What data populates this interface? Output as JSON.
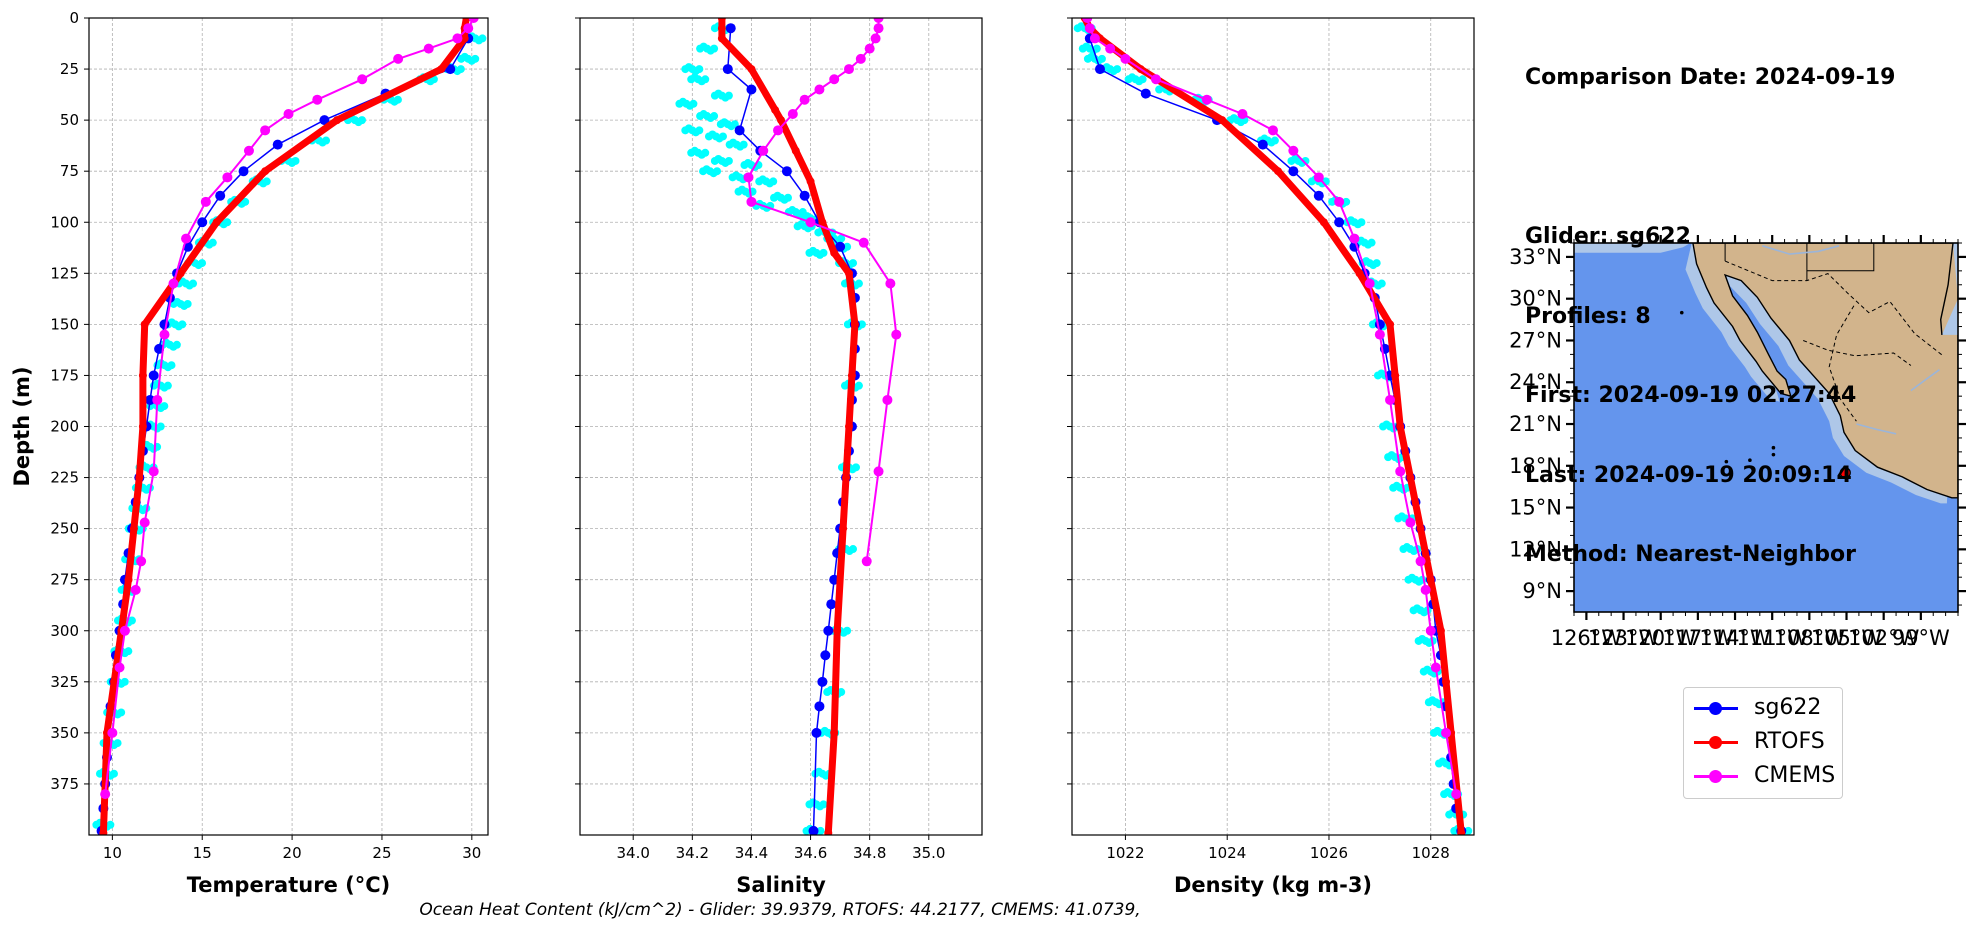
{
  "chart_data": [
    {
      "type": "line",
      "xlabel": "Temperature (°C)",
      "ylabel": "Depth (m)",
      "xlim": [
        8.7,
        30.9
      ],
      "ylim": [
        400,
        0
      ],
      "xticks": [
        10,
        15,
        20,
        25,
        30
      ],
      "yticks": [
        0,
        25,
        50,
        75,
        100,
        125,
        150,
        175,
        200,
        225,
        250,
        275,
        300,
        325,
        350,
        375
      ],
      "grid": true,
      "glider_scatter": {
        "name": "sg622 profiles",
        "color": "#00FFFF",
        "x": [
          30.2,
          29.8,
          29.0,
          27.5,
          25.5,
          23.5,
          21.5,
          19.8,
          18.2,
          17.0,
          16.0,
          15.2,
          14.6,
          14.1,
          13.8,
          13.5,
          13.2,
          12.9,
          12.7,
          12.5,
          12.3,
          12.1,
          11.9,
          11.7,
          11.5,
          11.3,
          11.1,
          10.9,
          10.7,
          10.5,
          10.3,
          10.1,
          9.9,
          9.7,
          9.5
        ],
        "y": [
          10,
          20,
          25,
          30,
          40,
          50,
          60,
          70,
          80,
          90,
          100,
          110,
          120,
          130,
          140,
          150,
          160,
          170,
          180,
          190,
          200,
          210,
          220,
          230,
          240,
          250,
          265,
          280,
          295,
          310,
          325,
          340,
          355,
          370,
          395
        ]
      },
      "series": [
        {
          "name": "sg622",
          "color": "#0000FF",
          "x": [
            29.8,
            28.8,
            25.2,
            21.8,
            19.2,
            17.3,
            16.0,
            15.0,
            14.2,
            13.6,
            13.2,
            12.9,
            12.6,
            12.3,
            12.1,
            11.9,
            11.7,
            11.5,
            11.3,
            11.1,
            10.9,
            10.7,
            10.6,
            10.4,
            10.2,
            10.1,
            9.9,
            9.8,
            9.7,
            9.6,
            9.5,
            9.4
          ],
          "y": [
            10,
            25,
            37,
            50,
            62,
            75,
            87,
            100,
            112,
            125,
            137,
            150,
            162,
            175,
            187,
            200,
            212,
            225,
            237,
            250,
            262,
            275,
            287,
            300,
            312,
            325,
            337,
            350,
            362,
            375,
            387,
            398
          ]
        },
        {
          "name": "RTOFS",
          "color": "#FF0000",
          "x": [
            29.7,
            29.6,
            29.6,
            28.3,
            22.5,
            18.5,
            15.8,
            13.8,
            11.8,
            11.7,
            11.7,
            11.5,
            11.2,
            10.9,
            10.5,
            10.1,
            9.7,
            9.5
          ],
          "y": [
            0,
            5,
            10,
            25,
            50,
            75,
            100,
            125,
            150,
            175,
            200,
            225,
            250,
            275,
            300,
            325,
            350,
            399
          ]
        },
        {
          "name": "CMEMS",
          "color": "#FF00FF",
          "x": [
            30.1,
            29.8,
            29.2,
            27.6,
            25.9,
            23.9,
            21.4,
            19.8,
            18.5,
            17.6,
            16.4,
            15.2,
            14.1,
            13.4,
            12.9,
            12.5,
            12.3,
            11.8,
            11.6,
            11.3,
            10.7,
            10.4,
            10.0,
            9.6
          ],
          "y": [
            0,
            5,
            10,
            15,
            20,
            30,
            40,
            47,
            55,
            65,
            78,
            90,
            108,
            130,
            155,
            187,
            222,
            247,
            266,
            280,
            300,
            318,
            350,
            380
          ]
        }
      ]
    },
    {
      "type": "line",
      "xlabel": "Salinity",
      "ylim": [
        400,
        0
      ],
      "xlim": [
        33.82,
        35.18
      ],
      "xticks": [
        "34.0",
        "34.2",
        "34.4",
        "34.6",
        "34.8",
        "35.0"
      ],
      "grid": true,
      "glider_scatter": {
        "name": "sg622 profiles",
        "color": "#00FFFF",
        "x": [
          34.3,
          34.25,
          34.2,
          34.22,
          34.3,
          34.18,
          34.25,
          34.32,
          34.2,
          34.28,
          34.35,
          34.22,
          34.3,
          34.4,
          34.26,
          34.36,
          34.45,
          34.38,
          34.5,
          34.44,
          34.55,
          34.6,
          34.58,
          34.65,
          34.68,
          34.7,
          34.62,
          34.72,
          34.74,
          34.75,
          34.74,
          34.73,
          34.72,
          34.7,
          34.68,
          34.66,
          34.64,
          34.62,
          34.61
        ],
        "y": [
          5,
          15,
          25,
          30,
          38,
          42,
          48,
          52,
          55,
          58,
          62,
          66,
          70,
          72,
          75,
          78,
          80,
          85,
          88,
          92,
          95,
          98,
          102,
          105,
          108,
          112,
          115,
          120,
          130,
          150,
          180,
          220,
          260,
          300,
          330,
          350,
          370,
          385,
          398
        ]
      },
      "series": [
        {
          "name": "sg622",
          "color": "#0000FF",
          "x": [
            34.33,
            34.32,
            34.4,
            34.36,
            34.43,
            34.52,
            34.58,
            34.63,
            34.7,
            34.74,
            34.75,
            34.75,
            34.75,
            34.75,
            34.74,
            34.74,
            34.73,
            34.72,
            34.71,
            34.7,
            34.69,
            34.68,
            34.67,
            34.66,
            34.65,
            34.64,
            34.63,
            34.62,
            34.61
          ],
          "y": [
            5,
            25,
            35,
            55,
            65,
            75,
            87,
            100,
            112,
            125,
            137,
            150,
            162,
            175,
            187,
            200,
            212,
            225,
            237,
            250,
            262,
            275,
            287,
            300,
            312,
            325,
            337,
            350,
            398
          ]
        },
        {
          "name": "RTOFS",
          "color": "#FF0000",
          "x": [
            34.3,
            34.3,
            34.3,
            34.4,
            34.48,
            34.5,
            34.55,
            34.6,
            34.64,
            34.68,
            34.73,
            34.75,
            34.74,
            34.73,
            34.72,
            34.71,
            34.69,
            34.68,
            34.66
          ],
          "y": [
            0,
            5,
            10,
            25,
            45,
            50,
            65,
            80,
            100,
            115,
            125,
            150,
            175,
            200,
            225,
            250,
            300,
            350,
            399
          ]
        },
        {
          "name": "CMEMS",
          "color": "#FF00FF",
          "x": [
            34.83,
            34.83,
            34.82,
            34.8,
            34.77,
            34.73,
            34.68,
            34.63,
            34.58,
            34.54,
            34.49,
            34.44,
            34.39,
            34.4,
            34.6,
            34.78,
            34.87,
            34.89,
            34.86,
            34.83,
            34.79
          ],
          "y": [
            0,
            5,
            10,
            15,
            20,
            25,
            30,
            35,
            40,
            47,
            55,
            65,
            78,
            90,
            100,
            110,
            130,
            155,
            187,
            222,
            266
          ]
        }
      ]
    },
    {
      "type": "line",
      "xlabel": "Density (kg m-3)",
      "ylim": [
        400,
        0
      ],
      "xlim": [
        1020.95,
        1028.85
      ],
      "xticks": [
        1022,
        1024,
        1026,
        1028
      ],
      "grid": true,
      "glider_scatter": {
        "name": "sg622 profiles",
        "color": "#00FFFF",
        "x": [
          1021.2,
          1021.3,
          1021.4,
          1021.7,
          1022.2,
          1022.8,
          1023.5,
          1024.2,
          1024.8,
          1025.4,
          1025.8,
          1026.2,
          1026.5,
          1026.7,
          1026.8,
          1026.9,
          1027.0,
          1027.1,
          1027.2,
          1027.3,
          1027.4,
          1027.5,
          1027.6,
          1027.7,
          1027.8,
          1027.9,
          1028.0,
          1028.1,
          1028.2,
          1028.3,
          1028.4,
          1028.5,
          1028.6
        ],
        "y": [
          5,
          15,
          20,
          25,
          30,
          35,
          40,
          50,
          60,
          70,
          80,
          90,
          100,
          110,
          120,
          130,
          150,
          175,
          200,
          215,
          230,
          245,
          260,
          275,
          290,
          305,
          320,
          335,
          350,
          365,
          380,
          390,
          398
        ]
      },
      "series": [
        {
          "name": "sg622",
          "color": "#0000FF",
          "x": [
            1021.3,
            1021.5,
            1022.4,
            1023.8,
            1024.7,
            1025.3,
            1025.8,
            1026.2,
            1026.5,
            1026.7,
            1026.9,
            1027.0,
            1027.1,
            1027.2,
            1027.3,
            1027.4,
            1027.5,
            1027.6,
            1027.7,
            1027.8,
            1027.9,
            1028.0,
            1028.05,
            1028.1,
            1028.2,
            1028.25,
            1028.3,
            1028.35,
            1028.4,
            1028.45,
            1028.5,
            1028.6
          ],
          "y": [
            10,
            25,
            37,
            50,
            62,
            75,
            87,
            100,
            112,
            125,
            137,
            150,
            162,
            175,
            187,
            200,
            212,
            225,
            237,
            250,
            262,
            275,
            287,
            300,
            312,
            325,
            337,
            350,
            362,
            375,
            387,
            398
          ]
        },
        {
          "name": "RTOFS",
          "color": "#FF0000",
          "x": [
            1021.2,
            1021.3,
            1021.5,
            1022.3,
            1023.9,
            1025.0,
            1025.9,
            1026.6,
            1027.2,
            1027.3,
            1027.4,
            1027.6,
            1027.8,
            1028.0,
            1028.2,
            1028.3,
            1028.4,
            1028.6
          ],
          "y": [
            0,
            5,
            10,
            25,
            50,
            75,
            100,
            125,
            150,
            175,
            200,
            225,
            250,
            275,
            300,
            325,
            350,
            399
          ]
        },
        {
          "name": "CMEMS",
          "color": "#FF00FF",
          "x": [
            1021.25,
            1021.3,
            1021.4,
            1021.7,
            1022.0,
            1022.6,
            1023.6,
            1024.3,
            1024.9,
            1025.3,
            1025.8,
            1026.2,
            1026.5,
            1026.8,
            1027.0,
            1027.2,
            1027.4,
            1027.6,
            1027.8,
            1027.9,
            1028.0,
            1028.1,
            1028.3,
            1028.5
          ],
          "y": [
            0,
            5,
            10,
            15,
            20,
            30,
            40,
            47,
            55,
            65,
            78,
            90,
            108,
            130,
            155,
            187,
            222,
            247,
            266,
            280,
            300,
            318,
            350,
            380
          ]
        }
      ]
    },
    {
      "type": "map",
      "lat_ticks": [
        "33°N",
        "30°N",
        "27°N",
        "24°N",
        "21°N",
        "18°N",
        "15°N",
        "12°N",
        "9°N"
      ],
      "lon_ticks": [
        "126°W",
        "123°W",
        "120°W",
        "117°W",
        "114°W",
        "111°W",
        "108°W",
        "105°W",
        "102°W",
        "99°W"
      ],
      "extent": {
        "lon": [
          -127,
          -96
        ],
        "lat": [
          7.5,
          34
        ]
      },
      "marker": {
        "lon": -105.1,
        "lat": 17.5,
        "color": "#FF0000"
      },
      "ocean_color": "#6495ED",
      "shelf_color": "#AEC7E8",
      "land_color": "#D2B48C"
    }
  ],
  "info": {
    "date": "Comparison Date: 2024-09-19",
    "glider": "Glider: sg622",
    "profiles": "Profiles: 8",
    "first": "First: 2024-09-19 02:27:44",
    "last": "Last: 2024-09-19 20:09:14",
    "method": "Method: Nearest-Neighbor"
  },
  "legend": [
    {
      "label": "sg622",
      "color": "#0000FF"
    },
    {
      "label": "RTOFS",
      "color": "#FF0000"
    },
    {
      "label": "CMEMS",
      "color": "#FF00FF"
    }
  ],
  "footer": "Ocean Heat Content (kJ/cm^2) - Glider: 39.9379,  RTOFS: 44.2177,  CMEMS: 41.0739,"
}
